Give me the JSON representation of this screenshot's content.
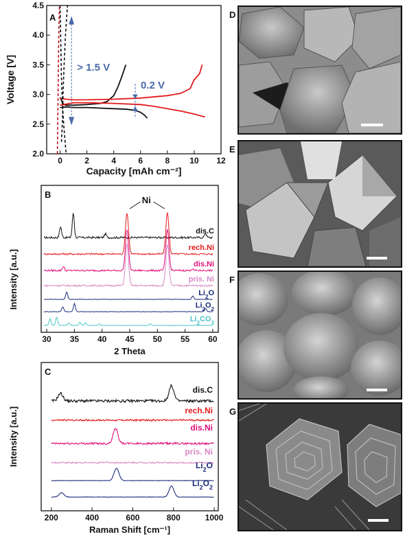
{
  "colors": {
    "black": "#111111",
    "red": "#e31a1c",
    "dark_red_dashed": "#c0141a",
    "blue_annotation": "#4a6aa8",
    "magenta": "#e0107a",
    "pink": "#d98ac4",
    "navy": "#1a2a7a",
    "cyan": "#4bc3c8"
  },
  "chart_data": [
    {
      "panel": "A",
      "type": "line",
      "xlabel": "Capacity [mAh cm⁻²]",
      "ylabel": "Voltage [V]",
      "xlim": [
        -1,
        12
      ],
      "ylim": [
        2.0,
        4.5
      ],
      "xticks": [
        "0",
        "2",
        "4",
        "6",
        "8",
        "10",
        "12"
      ],
      "yticks": [
        "2.0",
        "2.5",
        "3.0",
        "3.5",
        "4.0",
        "4.5"
      ],
      "annotations": [
        "> 1.5 V",
        "0.2 V"
      ],
      "series": [
        {
          "color": "black",
          "style": "solid",
          "points": [
            [
              0,
              2.95
            ],
            [
              0.2,
              2.85
            ],
            [
              0.4,
              2.82
            ],
            [
              1,
              2.82
            ],
            [
              2,
              2.83
            ],
            [
              3,
              2.85
            ],
            [
              3.5,
              2.88
            ],
            [
              4,
              2.98
            ],
            [
              4.3,
              3.12
            ],
            [
              4.6,
              3.3
            ],
            [
              4.9,
              3.5
            ]
          ]
        },
        {
          "color": "black",
          "style": "solid",
          "points": [
            [
              0,
              2.78
            ],
            [
              0.5,
              2.79
            ],
            [
              1,
              2.78
            ],
            [
              2,
              2.78
            ],
            [
              3,
              2.77
            ],
            [
              4,
              2.76
            ],
            [
              5,
              2.75
            ],
            [
              5.6,
              2.73
            ],
            [
              6,
              2.7
            ],
            [
              6.3,
              2.65
            ],
            [
              6.5,
              2.6
            ]
          ]
        },
        {
          "color": "red",
          "style": "solid",
          "points": [
            [
              0,
              2.93
            ],
            [
              1,
              2.91
            ],
            [
              2,
              2.91
            ],
            [
              4,
              2.92
            ],
            [
              6,
              2.94
            ],
            [
              8,
              2.98
            ],
            [
              9,
              3.02
            ],
            [
              9.7,
              3.1
            ],
            [
              10,
              3.25
            ],
            [
              10.4,
              3.35
            ],
            [
              10.6,
              3.5
            ]
          ]
        },
        {
          "color": "red",
          "style": "solid",
          "points": [
            [
              0,
              2.82
            ],
            [
              1,
              2.86
            ],
            [
              2,
              2.86
            ],
            [
              4,
              2.85
            ],
            [
              6,
              2.83
            ],
            [
              7,
              2.8
            ],
            [
              8,
              2.76
            ],
            [
              9,
              2.72
            ],
            [
              10,
              2.67
            ],
            [
              10.8,
              2.62
            ]
          ]
        },
        {
          "color": "black",
          "style": "dashed",
          "points": [
            [
              0.1,
              2.2
            ],
            [
              0.18,
              2.6
            ],
            [
              0.22,
              3.0
            ],
            [
              0.3,
              3.5
            ],
            [
              0.4,
              4.0
            ],
            [
              0.55,
              4.5
            ]
          ]
        },
        {
          "color": "black",
          "style": "dashed",
          "points": [
            [
              0.0,
              4.5
            ],
            [
              0.05,
              3.9
            ],
            [
              0.1,
              3.3
            ],
            [
              0.18,
              2.8
            ],
            [
              0.3,
              2.4
            ],
            [
              0.45,
              2.0
            ]
          ]
        },
        {
          "color": "dark_red_dashed",
          "style": "dashed",
          "points": [
            [
              -0.2,
              2.0
            ],
            [
              -0.15,
              3.0
            ],
            [
              -0.1,
              4.0
            ],
            [
              -0.05,
              4.5
            ]
          ]
        }
      ]
    },
    {
      "panel": "B",
      "type": "line",
      "xlabel": "2 Theta",
      "ylabel": "Intensity [a.u.]",
      "xlim": [
        29,
        61
      ],
      "xticks": [
        "30",
        "35",
        "40",
        "45",
        "50",
        "55",
        "60"
      ],
      "annotations": [
        "Ni"
      ],
      "series": [
        {
          "name": "dis.C",
          "color": "black",
          "peaks": [
            [
              32.5,
              0.45
            ],
            [
              34.8,
              1.0
            ],
            [
              40.6,
              0.15
            ],
            [
              58.7,
              0.18
            ]
          ]
        },
        {
          "name": "rech.Ni",
          "color": "red",
          "peaks": [
            [
              44.5,
              3.0
            ],
            [
              51.8,
              3.0
            ]
          ]
        },
        {
          "name": "dis.Ni",
          "color": "magenta",
          "peaks": [
            [
              33.0,
              0.3
            ],
            [
              44.5,
              3.0
            ],
            [
              51.8,
              3.0
            ],
            [
              56.3,
              0.12
            ]
          ]
        },
        {
          "name": "pris. Ni",
          "color": "pink",
          "peaks": [
            [
              44.5,
              3.0
            ],
            [
              51.8,
              3.0
            ]
          ]
        },
        {
          "name": "Li2O",
          "color": "navy",
          "peaks": [
            [
              33.6,
              0.9
            ],
            [
              56.4,
              0.4
            ]
          ]
        },
        {
          "name": "Li2O2",
          "color": "navy",
          "peaks": [
            [
              32.9,
              0.6
            ],
            [
              35.0,
              1.0
            ],
            [
              58.7,
              0.4
            ]
          ]
        },
        {
          "name": "Li2CO3",
          "color": "cyan",
          "peaks": [
            [
              30.6,
              0.8
            ],
            [
              31.8,
              1.0
            ],
            [
              34.0,
              0.3
            ],
            [
              36.0,
              0.4
            ],
            [
              37.0,
              0.3
            ],
            [
              39.5,
              0.2
            ],
            [
              48.7,
              0.2
            ]
          ]
        }
      ]
    },
    {
      "panel": "C",
      "type": "line",
      "xlabel": "Raman Shift [cm⁻¹]",
      "ylabel": "Intensity [a.u.]",
      "xlim": [
        150,
        1020
      ],
      "xticks": [
        "200",
        "400",
        "600",
        "800",
        "1000"
      ],
      "series": [
        {
          "name": "dis.C",
          "color": "black",
          "peaks": [
            [
              245,
              0.5
            ],
            [
              790,
              1.0
            ]
          ]
        },
        {
          "name": "rech.Ni",
          "color": "red",
          "peaks": []
        },
        {
          "name": "dis.Ni",
          "color": "magenta",
          "peaks": [
            [
              515,
              1.0
            ]
          ]
        },
        {
          "name": "pris. Ni",
          "color": "pink",
          "peaks": [
            [
              470,
              0.1
            ]
          ]
        },
        {
          "name": "Li2O",
          "color": "navy",
          "peaks": [
            [
              520,
              1.0
            ]
          ]
        },
        {
          "name": "Li2O2",
          "color": "navy",
          "peaks": [
            [
              250,
              0.4
            ],
            [
              790,
              1.0
            ]
          ]
        }
      ]
    }
  ],
  "sem_panels": [
    {
      "label": "D",
      "texture": "irregular-chunks"
    },
    {
      "label": "E",
      "texture": "octahedral-crystals"
    },
    {
      "label": "F",
      "texture": "rounded-aggregates"
    },
    {
      "label": "G",
      "texture": "hexagonal-stacks"
    }
  ]
}
